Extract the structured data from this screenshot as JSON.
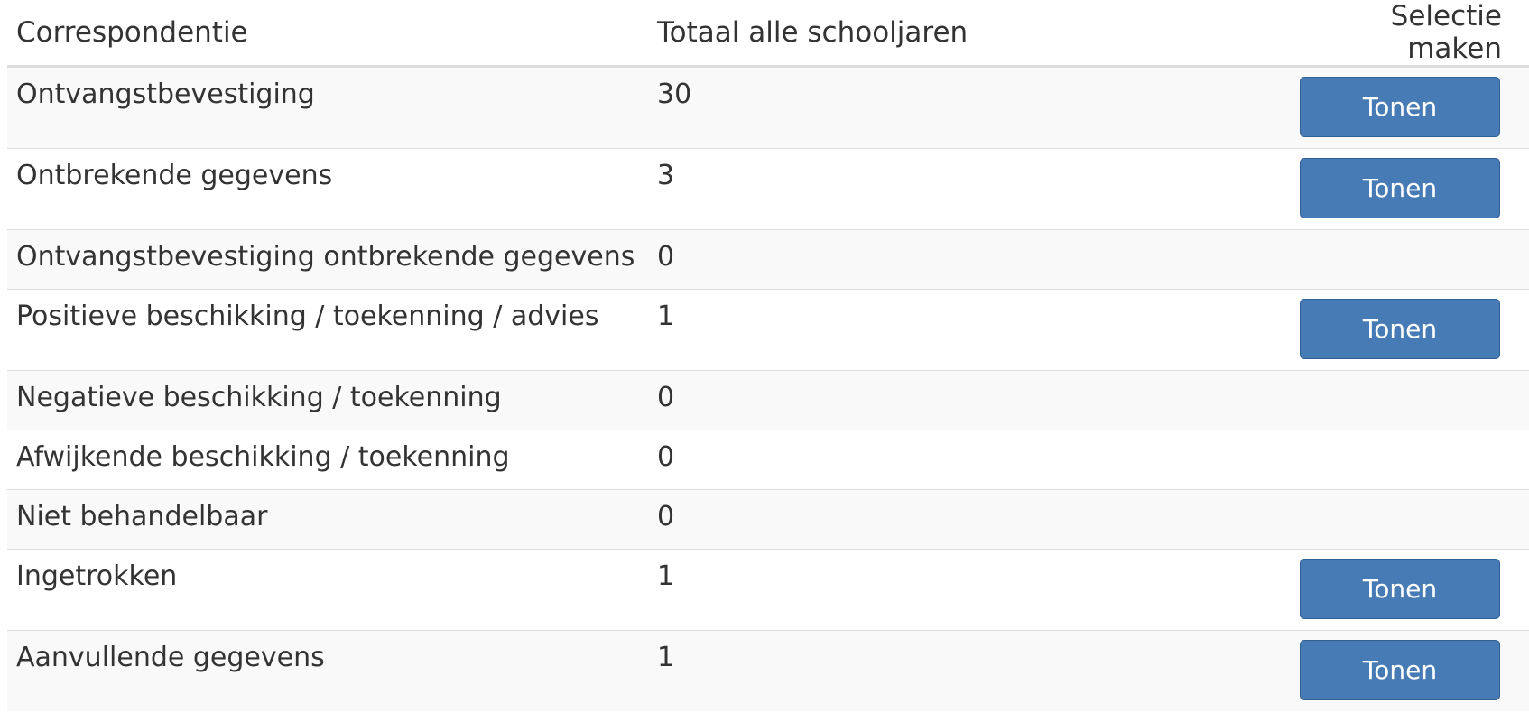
{
  "table": {
    "headers": {
      "correspondentie": "Correspondentie",
      "totaal": "Totaal alle schooljaren",
      "selectie": "Selectie maken"
    },
    "button_label": "Tonen",
    "rows": [
      {
        "label": "Ontvangstbevestiging",
        "total": "30",
        "has_button": true
      },
      {
        "label": "Ontbrekende gegevens",
        "total": "3",
        "has_button": true
      },
      {
        "label": "Ontvangstbevestiging ontbrekende gegevens",
        "total": "0",
        "has_button": false
      },
      {
        "label": "Positieve beschikking / toekenning / advies",
        "total": "1",
        "has_button": true
      },
      {
        "label": "Negatieve beschikking / toekenning",
        "total": "0",
        "has_button": false
      },
      {
        "label": "Afwijkende beschikking / toekenning",
        "total": "0",
        "has_button": false
      },
      {
        "label": "Niet behandelbaar",
        "total": "0",
        "has_button": false
      },
      {
        "label": "Ingetrokken",
        "total": "1",
        "has_button": true
      },
      {
        "label": "Aanvullende gegevens",
        "total": "1",
        "has_button": true
      }
    ]
  }
}
